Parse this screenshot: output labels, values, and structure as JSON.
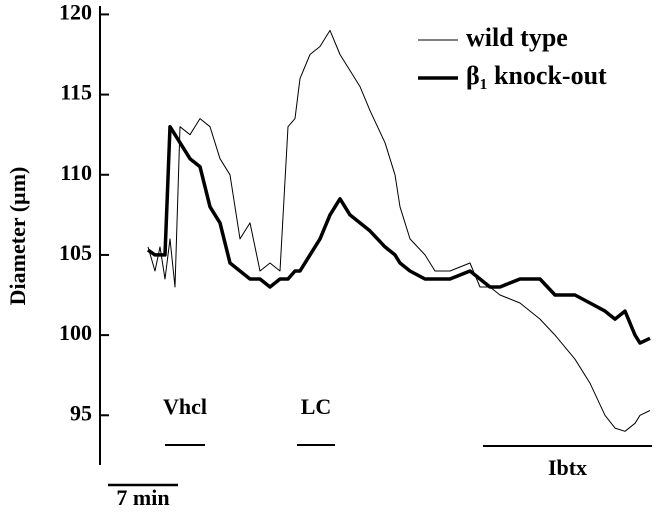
{
  "chart_data": {
    "type": "line",
    "y_label": "Diameter (µm)",
    "x": [
      4.8,
      5.5,
      6,
      6.5,
      7,
      7.5,
      8,
      9,
      10,
      11,
      12,
      13,
      14,
      15,
      16,
      17,
      18,
      18.8,
      19.5,
      20,
      21,
      22,
      23,
      24,
      25,
      26,
      27,
      28.5,
      29.5,
      30,
      31,
      32.5,
      33.5,
      35,
      37,
      38,
      39,
      40,
      42,
      44,
      45.5,
      47.5,
      49,
      50.5,
      51.5,
      52.5,
      53.5,
      54,
      55
    ],
    "series": [
      {
        "name": "wild type",
        "color": "#000000",
        "width": 1,
        "values": [
          105.5,
          104,
          105.5,
          103.5,
          106,
          103,
          113,
          112.5,
          113.5,
          113,
          111,
          110,
          106,
          107,
          104,
          104.5,
          104,
          113,
          113.5,
          116,
          117.5,
          118,
          119,
          117.5,
          116.5,
          115.5,
          114,
          112,
          110,
          108,
          106,
          105,
          104,
          104,
          104.5,
          103,
          103,
          102.5,
          102,
          101,
          100,
          98.5,
          97,
          95,
          94.2,
          94,
          94.5,
          95,
          95.3
        ]
      },
      {
        "name": "β₁ knock-out",
        "color": "#000000",
        "width": 3.5,
        "values": [
          105.3,
          105,
          105,
          105,
          113,
          112.5,
          112,
          111,
          110.5,
          108,
          107,
          104.5,
          104,
          103.5,
          103.5,
          103,
          103.5,
          103.5,
          104,
          104,
          105,
          106,
          107.5,
          108.5,
          107.5,
          107,
          106.5,
          105.5,
          105,
          104.5,
          104,
          103.5,
          103.5,
          103.5,
          104,
          103.5,
          103,
          103,
          103.5,
          103.5,
          102.5,
          102.5,
          102,
          101.5,
          101,
          101.5,
          100,
          99.5,
          99.8
        ]
      }
    ],
    "xlim": [
      0,
      55.8
    ],
    "ylim": [
      91.9,
      120.4
    ],
    "yticks": [
      95,
      100,
      105,
      110,
      115,
      120
    ],
    "legend": "top-right",
    "annotations": [
      {
        "label": "Vhcl",
        "x": [
          6.5,
          10.5
        ]
      },
      {
        "label": "LC",
        "x": [
          19.7,
          23.5
        ]
      },
      {
        "label": "Ibtx",
        "x": [
          38.3,
          55.2
        ]
      }
    ],
    "scale_bar": {
      "value": 7,
      "label": "7 min"
    }
  }
}
